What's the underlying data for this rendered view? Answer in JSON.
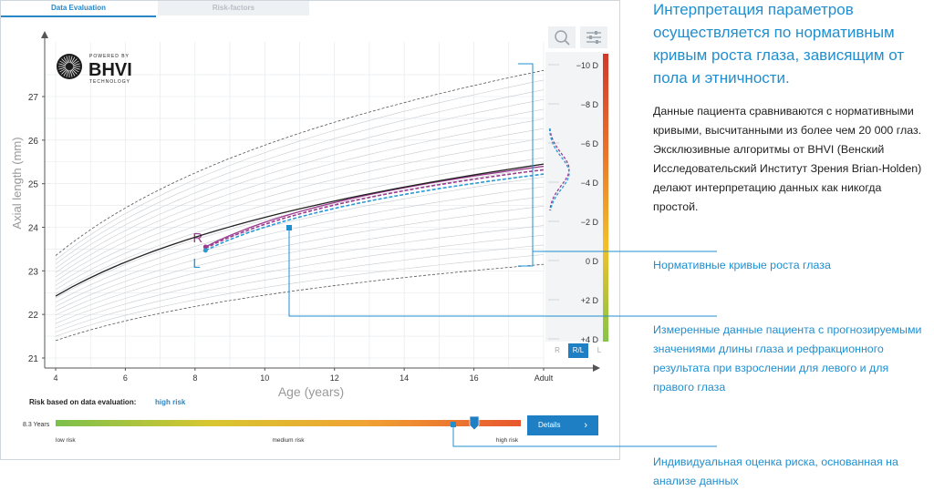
{
  "tabs": [
    {
      "label": "Data Evaluation",
      "active": true
    },
    {
      "label": "Risk-factors",
      "active": false
    }
  ],
  "logo": {
    "powered_by": "POWERED BY",
    "brand": "BHVI",
    "sub": "TECHNOLOGY"
  },
  "chart_data": {
    "type": "line",
    "xlabel": "Age (years)",
    "ylabel": "Axial length (mm)",
    "x_ticks": [
      "4",
      "6",
      "8",
      "10",
      "12",
      "14",
      "16",
      "Adult"
    ],
    "y_ticks": [
      21,
      22,
      23,
      24,
      25,
      26,
      27
    ],
    "xlim": [
      4,
      18
    ],
    "ylim": [
      20.8,
      27.8
    ],
    "grid": true,
    "percentile_curves": {
      "count": 21,
      "start_range": [
        21.4,
        23.35
      ],
      "end_range": [
        23.15,
        27.6
      ],
      "dashed_outer": true
    },
    "series": [
      {
        "name": "R",
        "color": "#9b3a8e",
        "style": "solid",
        "x": [
          8.3,
          18
        ],
        "y": [
          23.55,
          25.4
        ]
      },
      {
        "name": "",
        "color": "#222222",
        "style": "solid",
        "x": [
          4,
          18
        ],
        "y": [
          22.42,
          25.45
        ]
      },
      {
        "name": "",
        "color": "#9b3a8e",
        "style": "dashed",
        "x": [
          8.3,
          18
        ],
        "y": [
          23.52,
          25.32
        ]
      },
      {
        "name": "L",
        "color": "#2a9ad4",
        "style": "dashed",
        "x": [
          8.3,
          18
        ],
        "y": [
          23.47,
          25.22
        ]
      }
    ],
    "refraction_scale": {
      "ticks": [
        "−10 D",
        "−8 D",
        "−6 D",
        "−4 D",
        "−2 D",
        "0 D",
        "+2 D",
        "+4 D"
      ],
      "colors": [
        "#d0392b",
        "#e8732b",
        "#f2c02a",
        "#86c44a"
      ]
    }
  },
  "eye_toggle": [
    "R",
    "R/L",
    "L"
  ],
  "risk": {
    "label": "Risk based on data evaluation:",
    "value": "high risk",
    "age": "8.3 Years",
    "level_fraction": 0.9,
    "low": "low risk",
    "medium": "medium risk",
    "high": "high risk",
    "details": "Details"
  },
  "side": {
    "title": "Интерпретация параметров осуществляется по нормативным кривым роста глаза, зависящим от пола и этничности.",
    "body": "Данные пациента сравниваются с нормативными кривыми, высчитанными из более чем 20 000 глаз. Эксклюзивные алгоритмы от BHVI (Венский Исследовательский Институт Зрения Brian-Holden) делают интерпретацию данных как никогда простой.",
    "callout1": "Нормативные кривые роста глаза",
    "callout2": "Измеренные данные пациента с прогнозируемыми значениями длины глаза и рефракционного результата при взрослении для левого и для правого глаза",
    "callout3": "Индивидуальная оценка риска, основанная на анализе данных"
  },
  "colors": {
    "accent": "#1f8fd0",
    "right_eye": "#9b3a8e",
    "left_eye": "#2a9ad4"
  }
}
